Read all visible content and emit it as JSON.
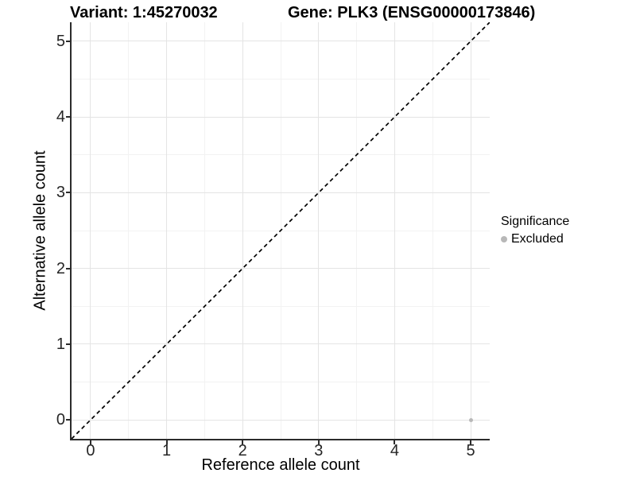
{
  "chart_data": {
    "type": "scatter",
    "title_left": "Variant: 1:45270032",
    "title_right": "Gene: PLK3 (ENSG00000173846)",
    "xlabel": "Reference allele count",
    "ylabel": "Alternative allele count",
    "xlim": [
      -0.25,
      5.25
    ],
    "ylim": [
      -0.25,
      5.25
    ],
    "x_ticks": [
      0,
      1,
      2,
      3,
      4,
      5
    ],
    "y_ticks": [
      0,
      1,
      2,
      3,
      4,
      5
    ],
    "x_minor_ticks": [
      0.5,
      1.5,
      2.5,
      3.5,
      4.5
    ],
    "y_minor_ticks": [
      0.5,
      1.5,
      2.5,
      3.5,
      4.5
    ],
    "grid": true,
    "legend_position": "right",
    "reference_line": {
      "type": "identity",
      "style": "dashed",
      "x1": -0.25,
      "y1": -0.25,
      "x2": 5.25,
      "y2": 5.25,
      "color": "#000000"
    },
    "series": [
      {
        "name": "Excluded",
        "color": "#b8b8b8",
        "points": [
          {
            "x": 5,
            "y": 0
          }
        ]
      }
    ],
    "legend": {
      "title": "Significance",
      "items": [
        {
          "label": "Excluded",
          "color": "#b8b8b8",
          "icon": "circle"
        }
      ]
    },
    "style_colors": {
      "grid_major": "#e4e4e4",
      "grid_minor": "#f2f2f2",
      "axis_line": "#2b2b2b",
      "point_excluded": "#b8b8b8"
    }
  }
}
